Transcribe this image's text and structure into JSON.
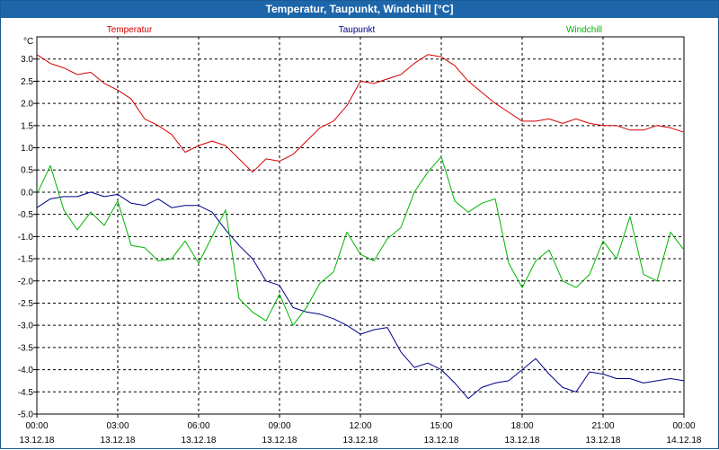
{
  "window": {
    "title": "Temperatur, Taupunkt, Windchill [°C]"
  },
  "colors": {
    "titlebar": "#1e66aa",
    "temperatur": "#d40000",
    "taupunkt": "#00008b",
    "windchill": "#00b400",
    "grid": "#000000"
  },
  "chart_data": {
    "type": "line",
    "title": "Temperatur, Taupunkt, Windchill [°C]",
    "ylabel": "°C",
    "ylim": [
      -5.0,
      3.5
    ],
    "xlim": [
      0,
      24
    ],
    "grid": true,
    "legend_placement": "top",
    "y_ticks": [
      "3.0",
      "2.5",
      "2.0",
      "1.5",
      "1.0",
      "0.5",
      "0.0",
      "-0.5",
      "-1.0",
      "-1.5",
      "-2.0",
      "-2.5",
      "-3.0",
      "-3.5",
      "-4.0",
      "-4.5",
      "-5.0"
    ],
    "x_ticks": [
      {
        "time": "00:00",
        "date": "13.12.18"
      },
      {
        "time": "03:00",
        "date": "13.12.18"
      },
      {
        "time": "06:00",
        "date": "13.12.18"
      },
      {
        "time": "09:00",
        "date": "13.12.18"
      },
      {
        "time": "12:00",
        "date": "13.12.18"
      },
      {
        "time": "15:00",
        "date": "13.12.18"
      },
      {
        "time": "18:00",
        "date": "13.12.18"
      },
      {
        "time": "21:00",
        "date": "13.12.18"
      },
      {
        "time": "00:00",
        "date": "14.12.18"
      }
    ],
    "series": [
      {
        "name": "Temperatur",
        "color": "#d40000",
        "x": [
          0,
          0.5,
          1,
          1.5,
          2,
          2.5,
          3,
          3.5,
          4,
          4.5,
          5,
          5.5,
          6,
          6.5,
          7,
          7.5,
          8,
          8.5,
          9,
          9.5,
          10,
          10.5,
          11,
          11.5,
          12,
          12.5,
          13,
          13.5,
          14,
          14.5,
          15,
          15.5,
          16,
          16.5,
          17,
          17.5,
          18,
          18.5,
          19,
          19.5,
          20,
          20.5,
          21,
          21.5,
          22,
          22.5,
          23,
          23.5,
          24
        ],
        "y": [
          3.1,
          2.9,
          2.8,
          2.65,
          2.7,
          2.45,
          2.3,
          2.1,
          1.65,
          1.5,
          1.3,
          0.9,
          1.05,
          1.15,
          1.05,
          0.75,
          0.45,
          0.75,
          0.7,
          0.85,
          1.15,
          1.45,
          1.6,
          1.95,
          2.5,
          2.45,
          2.55,
          2.65,
          2.9,
          3.1,
          3.05,
          2.85,
          2.5,
          2.25,
          2.0,
          1.8,
          1.6,
          1.6,
          1.65,
          1.55,
          1.65,
          1.55,
          1.5,
          1.5,
          1.4,
          1.4,
          1.5,
          1.45,
          1.35
        ]
      },
      {
        "name": "Taupunkt",
        "color": "#00008b",
        "x": [
          0,
          0.5,
          1,
          1.5,
          2,
          2.5,
          3,
          3.5,
          4,
          4.5,
          5,
          5.5,
          6,
          6.5,
          7,
          7.5,
          8,
          8.5,
          9,
          9.5,
          10,
          10.5,
          11,
          11.5,
          12,
          12.5,
          13,
          13.5,
          14,
          14.5,
          15,
          15.5,
          16,
          16.5,
          17,
          17.5,
          18,
          18.5,
          19,
          19.5,
          20,
          20.5,
          21,
          21.5,
          22,
          22.5,
          23,
          23.5,
          24
        ],
        "y": [
          -0.35,
          -0.15,
          -0.1,
          -0.1,
          0.0,
          -0.1,
          -0.05,
          -0.25,
          -0.3,
          -0.15,
          -0.35,
          -0.3,
          -0.3,
          -0.45,
          -0.85,
          -1.2,
          -1.5,
          -2.0,
          -2.1,
          -2.6,
          -2.7,
          -2.75,
          -2.85,
          -3.0,
          -3.2,
          -3.1,
          -3.05,
          -3.6,
          -3.95,
          -3.85,
          -4.0,
          -4.3,
          -4.65,
          -4.4,
          -4.3,
          -4.25,
          -4.0,
          -3.75,
          -4.1,
          -4.4,
          -4.5,
          -4.05,
          -4.1,
          -4.2,
          -4.2,
          -4.3,
          -4.25,
          -4.2,
          -4.25
        ]
      },
      {
        "name": "Windchill",
        "color": "#00b400",
        "x": [
          0,
          0.5,
          1,
          1.5,
          2,
          2.5,
          3,
          3.5,
          4,
          4.5,
          5,
          5.5,
          6,
          6.5,
          7,
          7.5,
          8,
          8.5,
          9,
          9.5,
          10,
          10.5,
          11,
          11.5,
          12,
          12.5,
          13,
          13.5,
          14,
          14.5,
          15,
          15.5,
          16,
          16.5,
          17,
          17.5,
          18,
          18.5,
          19,
          19.5,
          20,
          20.5,
          21,
          21.5,
          22,
          22.5,
          23,
          23.5,
          24
        ],
        "y": [
          -0.05,
          0.6,
          -0.4,
          -0.85,
          -0.45,
          -0.75,
          -0.2,
          -1.2,
          -1.25,
          -1.55,
          -1.5,
          -1.1,
          -1.6,
          -1.0,
          -0.4,
          -2.4,
          -2.7,
          -2.9,
          -2.3,
          -3.0,
          -2.6,
          -2.05,
          -1.8,
          -0.9,
          -1.4,
          -1.55,
          -1.05,
          -0.8,
          0.0,
          0.45,
          0.8,
          -0.2,
          -0.45,
          -0.25,
          -0.15,
          -1.6,
          -2.15,
          -1.55,
          -1.3,
          -2.0,
          -2.15,
          -1.85,
          -1.1,
          -1.5,
          -0.55,
          -1.85,
          -2.0,
          -0.9,
          -1.3
        ]
      }
    ]
  }
}
